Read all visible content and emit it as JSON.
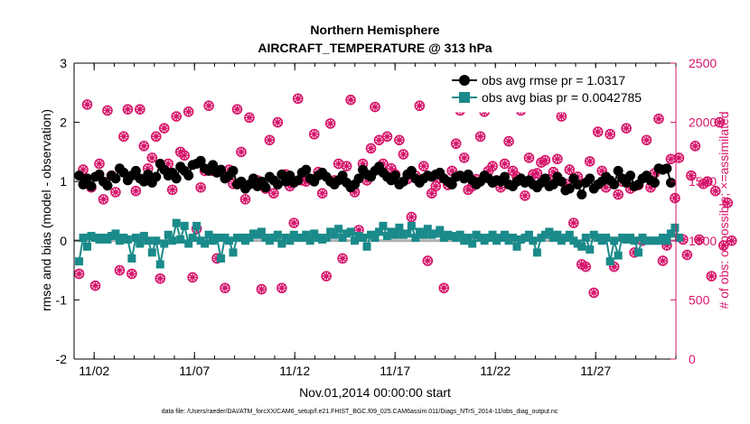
{
  "chart_data": {
    "type": "line",
    "title": "Northern Hemisphere",
    "subtitle": "AIRCRAFT_TEMPERATURE @ 313 hPa",
    "xlabel": "Nov.01,2014 00:00:00 start",
    "ylabel": "rmse and bias (model - observation)",
    "ylabel_right": "# of obs: o=possible; ×=assimilated",
    "footnote": "data file: /Users/raeder/DAI/ATM_forcXX/CAM6_setup/f.e21.FHIST_BGC.f09_025.CAM6assim.011/Diags_NTrS_2014-11/obs_diag_output.nc",
    "x_range_days": [
      1.0,
      31.0
    ],
    "ylim": [
      -2,
      3
    ],
    "ylim_right": [
      0,
      2500
    ],
    "x_ticks": [
      {
        "value": 2,
        "label": "11/02"
      },
      {
        "value": 7,
        "label": "11/07"
      },
      {
        "value": 12,
        "label": "11/12"
      },
      {
        "value": 17,
        "label": "11/17"
      },
      {
        "value": 22,
        "label": "11/22"
      },
      {
        "value": 27,
        "label": "11/27"
      }
    ],
    "y_ticks": [
      -2,
      -1,
      0,
      1,
      2,
      3
    ],
    "y_ticks_right": [
      0,
      500,
      1000,
      1500,
      2000,
      2500
    ],
    "legend": [
      {
        "label": "obs avg rmse pr = 1.0317",
        "color": "#000000"
      },
      {
        "label": "obs avg bias pr = 0.0042785",
        "color": "#1a8a8a"
      }
    ],
    "colors": {
      "rmse": "#000000",
      "bias": "#1a8a8a",
      "obs": "#d6156a",
      "zero": "#b0b0b0"
    },
    "series_rmse": {
      "name": "obs avg rmse pr",
      "values": [
        1.1,
        0.95,
        1.05,
        0.92,
        1.08,
        1.12,
        1.0,
        0.93,
        1.1,
        1.05,
        1.22,
        1.15,
        1.02,
        1.1,
        1.18,
        1.05,
        1.0,
        1.12,
        0.98,
        1.08,
        1.3,
        1.2,
        1.1,
        1.15,
        1.05,
        1.25,
        1.18,
        1.1,
        1.28,
        1.3,
        1.35,
        1.22,
        1.18,
        1.28,
        1.15,
        1.2,
        1.05,
        1.1,
        1.18,
        0.95,
        1.0,
        0.88,
        0.95,
        1.05,
        0.92,
        1.0,
        0.9,
        1.08,
        1.02,
        0.95,
        1.12,
        1.0,
        1.1,
        0.98,
        1.02,
        1.15,
        1.2,
        1.05,
        1.0,
        1.1,
        1.15,
        1.08,
        1.0,
        0.95,
        1.02,
        1.1,
        0.98,
        0.9,
        0.95,
        1.05,
        1.2,
        1.12,
        1.08,
        1.18,
        1.25,
        1.15,
        1.08,
        1.02,
        1.1,
        0.95,
        1.0,
        1.12,
        1.18,
        1.05,
        0.98,
        1.05,
        1.1,
        1.08,
        1.12,
        1.15,
        1.05,
        1.0,
        0.95,
        1.08,
        1.1,
        1.05,
        1.12,
        1.02,
        0.95,
        1.0,
        1.1,
        1.05,
        0.98,
        1.02,
        1.0,
        1.08,
        0.95,
        0.92,
        1.0,
        1.05,
        0.98,
        1.02,
        0.95,
        0.9,
        0.98,
        1.05,
        0.92,
        0.95,
        1.08,
        1.0,
        0.85,
        0.88,
        1.05,
        0.95,
        0.78,
        0.98,
        1.05,
        0.88,
        0.95,
        1.0,
        1.08,
        1.02,
        0.95,
        1.18,
        1.05,
        0.98,
        1.1,
        0.92,
        0.95,
        1.05,
        1.1,
        1.02,
        0.98,
        1.22,
        1.2,
        1.22,
        0.98
      ]
    },
    "series_bias": {
      "name": "obs avg bias pr",
      "values": [
        -0.35,
        0.05,
        -0.1,
        0.08,
        0.05,
        0.02,
        0.05,
        0.02,
        0.08,
        0.12,
        0.0,
        0.05,
        0.02,
        -0.3,
        0.05,
        -0.05,
        0.08,
        0.0,
        -0.2,
        0.0,
        -0.4,
        -0.05,
        0.1,
        0.0,
        0.3,
        0.02,
        0.25,
        -0.05,
        0.05,
        0.25,
        0.0,
        -0.05,
        0.1,
        0.0,
        0.05,
        -0.3,
        0.05,
        0.0,
        -0.2,
        0.05,
        0.05,
        0.0,
        0.05,
        0.12,
        0.1,
        0.15,
        0.05,
        0.0,
        0.05,
        0.1,
        -0.05,
        0.05,
        0.0,
        0.1,
        0.05,
        0.05,
        0.1,
        0.0,
        0.12,
        0.05,
        0.02,
        0.05,
        0.15,
        0.1,
        0.2,
        0.05,
        0.12,
        0.15,
        0.0,
        0.08,
        0.05,
        -0.1,
        0.1,
        0.05,
        0.15,
        0.25,
        0.08,
        0.15,
        0.1,
        0.22,
        0.1,
        0.12,
        0.25,
        0.05,
        0.15,
        0.1,
        0.2,
        0.1,
        0.12,
        0.18,
        0.05,
        0.1,
        0.08,
        0.05,
        0.1,
        0.0,
        0.05,
        -0.05,
        0.1,
        0.05,
        0.0,
        0.05,
        0.1,
        0.0,
        0.05,
        0.1,
        0.0,
        0.05,
        -0.1,
        0.02,
        0.05,
        0.1,
        0.0,
        -0.2,
        0.05,
        0.1,
        0.15,
        0.05,
        0.1,
        0.0,
        0.05,
        0.1,
        0.0,
        -0.05,
        -0.1,
        0.05,
        -0.15,
        0.1,
        0.05,
        0.0,
        0.05,
        -0.35,
        0.0,
        -0.25,
        0.05,
        0.02,
        0.05,
        0.0,
        -0.2,
        0.05,
        0.0,
        0.0,
        0.0,
        0.0,
        0.05,
        0.0,
        0.12,
        0.22,
        0.05
      ]
    },
    "series_obs": {
      "name": "# of obs possible / assimilated",
      "values": [
        720,
        1600,
        2150,
        1450,
        620,
        1650,
        1350,
        2100,
        1550,
        1410,
        750,
        1880,
        2110,
        720,
        1420,
        2110,
        1800,
        1610,
        1700,
        1880,
        680,
        1950,
        1650,
        1430,
        2050,
        1750,
        1720,
        2090,
        690,
        1100,
        1450,
        1590,
        2140,
        1590,
        850,
        1580,
        600,
        1600,
        1480,
        2110,
        1750,
        1350,
        2040,
        1510,
        1510,
        590,
        1440,
        1850,
        1400,
        2000,
        600,
        1560,
        1460,
        1150,
        2200,
        1510,
        1500,
        1520,
        1900,
        1580,
        1400,
        700,
        1990,
        1510,
        1650,
        850,
        1630,
        2190,
        1410,
        1090,
        1650,
        1510,
        1780,
        2130,
        1850,
        1650,
        1880,
        1610,
        1560,
        1850,
        1730,
        1520,
        1200,
        1550,
        2140,
        1630,
        830,
        1400,
        1460,
        1530,
        600,
        1470,
        1590,
        1820,
        2100,
        1700,
        1430,
        1460,
        1520,
        1880,
        2090,
        1590,
        1630,
        1510,
        1450,
        1650,
        1840,
        1590,
        1540,
        2100,
        1380,
        1700,
        1560,
        1570,
        1660,
        1680,
        1520,
        1580,
        1690,
        2050,
        1480,
        1600,
        1150,
        1540,
        800,
        780,
        1670,
        560,
        1920,
        1590,
        1450,
        1900,
        780,
        1390,
        1500,
        1950,
        1440,
        900,
        1470,
        1000,
        1850,
        1450,
        1570,
        2030,
        830,
        960,
        1690,
        1360,
        1700,
        1010,
        880,
        1550,
        1800,
        1010,
        1480,
        1500,
        700,
        1420,
        2000,
        960,
        1320,
        1000
      ]
    }
  }
}
